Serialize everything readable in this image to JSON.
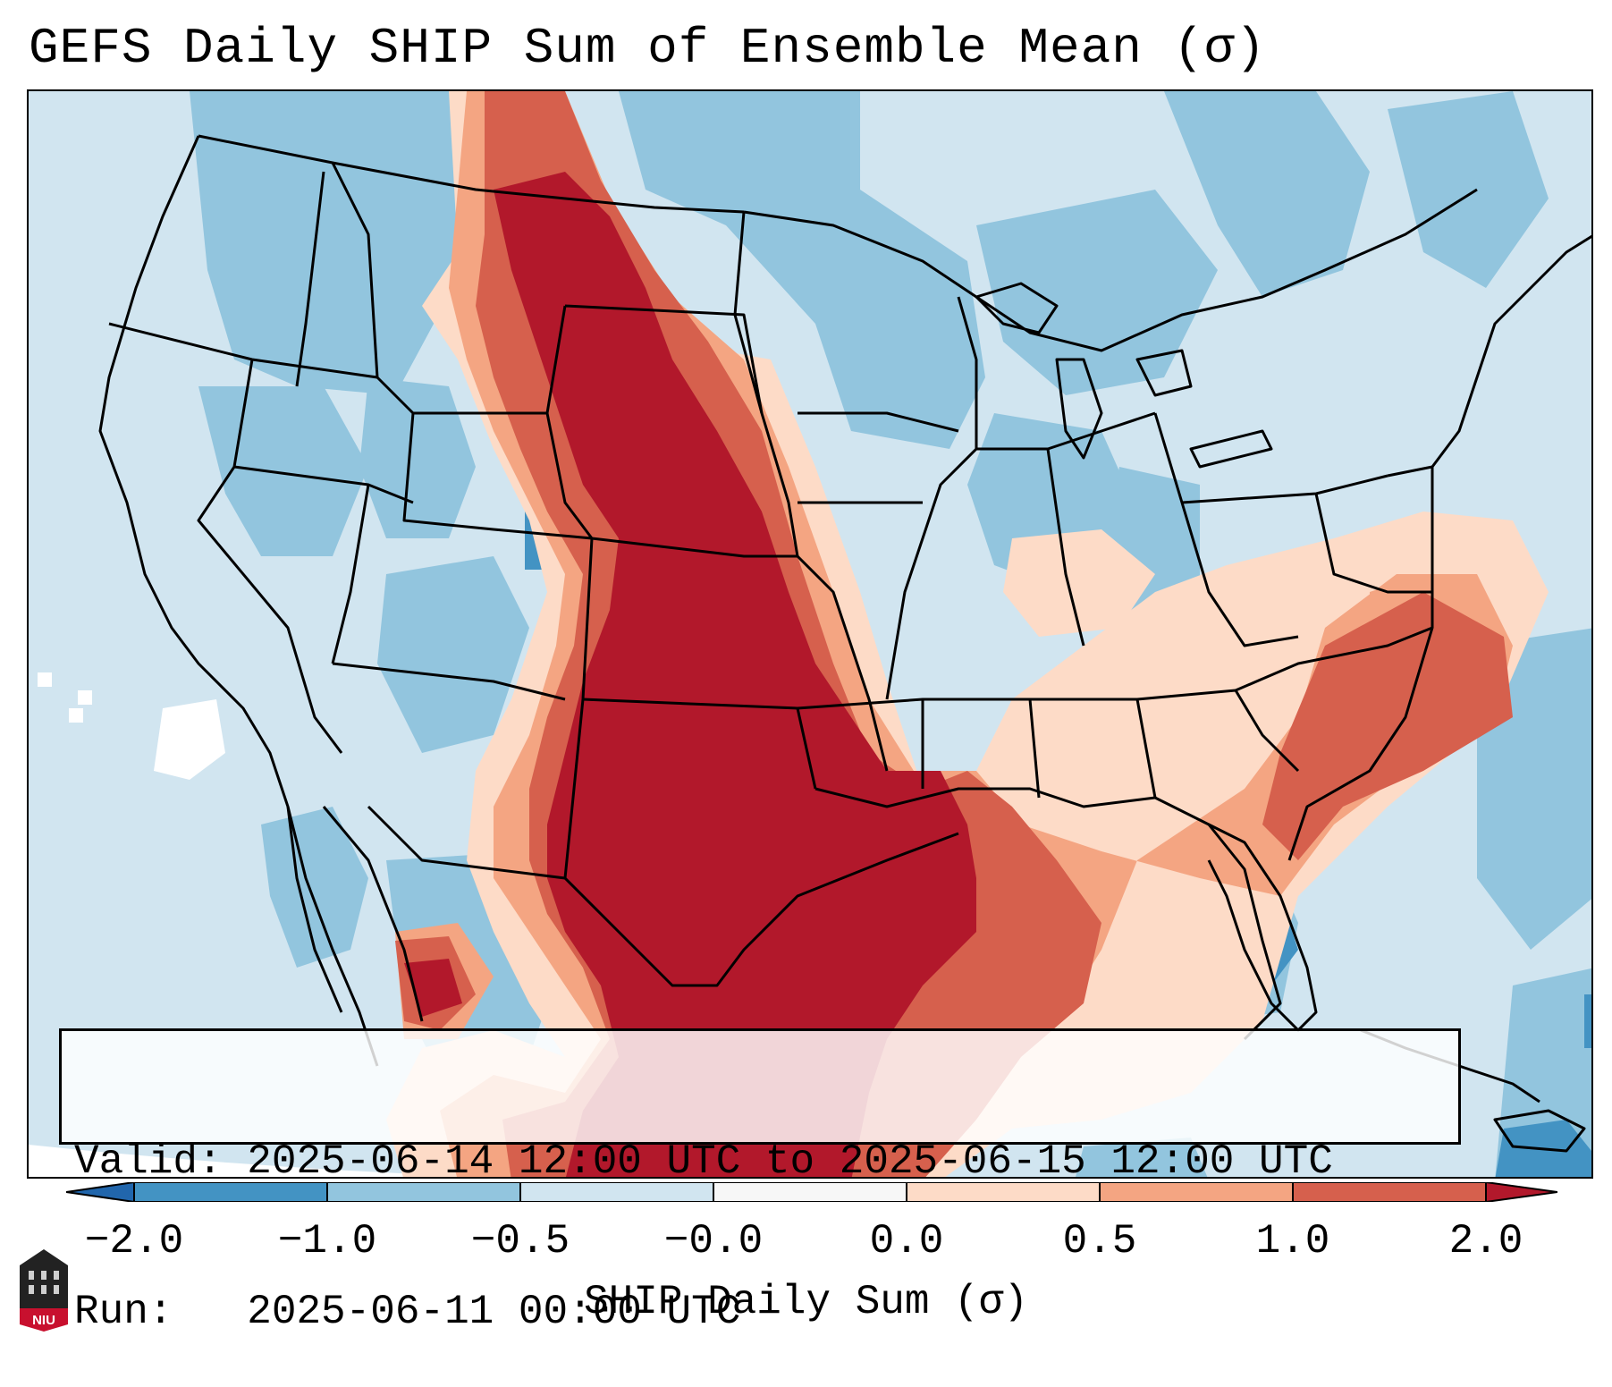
{
  "title": "GEFS Daily SHIP Sum of Ensemble Mean (σ)",
  "info": {
    "valid_line": "Valid: 2025-06-14 12:00 UTC to 2025-06-15 12:00 UTC",
    "run_line": "Run:   2025-06-11 00:00 UTC"
  },
  "colorbar": {
    "label": "SHIP Daily Sum (σ)",
    "tick_labels": [
      "−2.0",
      "−1.0",
      "−0.5",
      "−0.0",
      "0.0",
      "0.5",
      "1.0",
      "2.0"
    ],
    "bin_colors": [
      "#4393c3",
      "#92c5de",
      "#d1e5f0",
      "#f7f7f7",
      "#fddbc7",
      "#f4a582",
      "#d6604d"
    ],
    "under_color": "#2166ac",
    "over_color": "#b2182b"
  },
  "map": {
    "region": "Contiguous United States, southern Canada, northern Mexico, Gulf of Mexico",
    "ocean_base_color": "#d1e5f0",
    "highlight_color": "#b2182b"
  },
  "logo": {
    "text": "NIU",
    "logo_color": "#c8102e"
  }
}
